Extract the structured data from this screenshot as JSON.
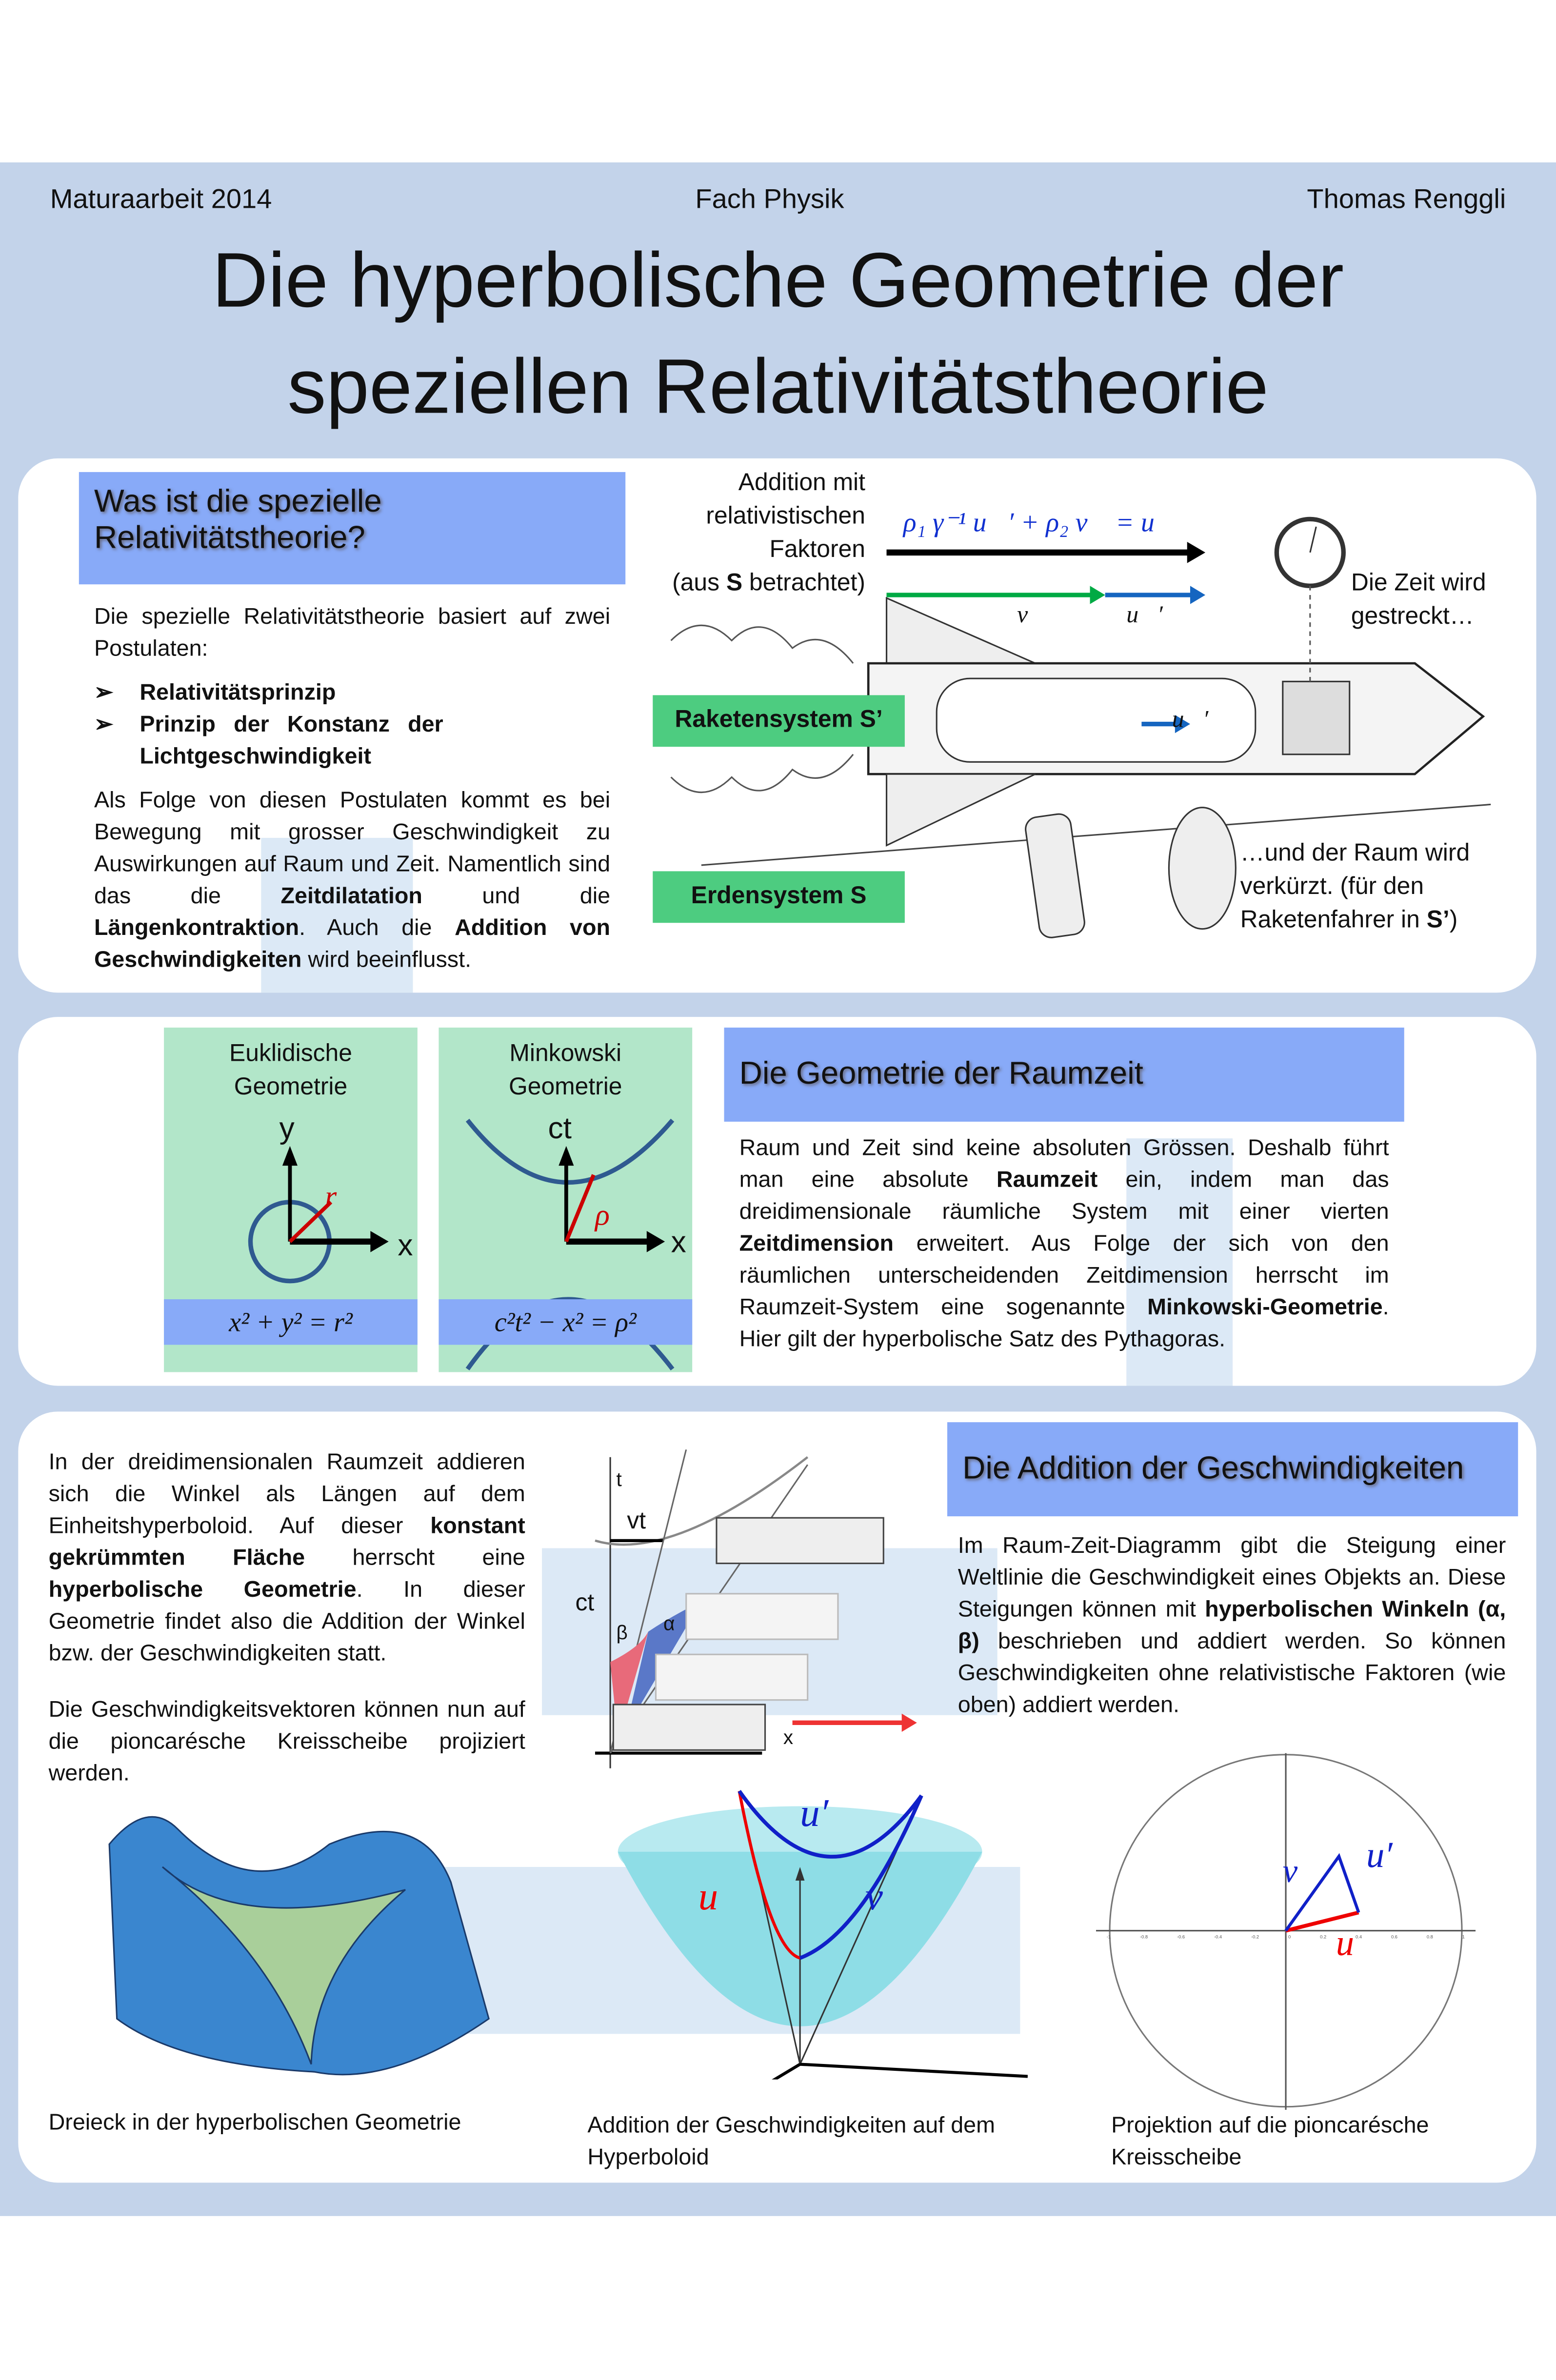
{
  "header": {
    "left": "Maturaarbeit 2014",
    "center": "Fach Physik",
    "right": "Thomas Renggli",
    "title_line1": "Die hyperbolische Geometrie der",
    "title_line2": "speziellen Relativitätstheorie"
  },
  "section1": {
    "heading_line1": "Was ist die spezielle",
    "heading_line2": "Relativitätstheorie?",
    "intro": "Die spezielle Relativitätstheorie basiert auf zwei Postulaten:",
    "postulates": [
      "Relativitätsprinzip",
      "Prinzip der Konstanz der Lichtgeschwindigkeit"
    ],
    "body": [
      {
        "t": "Als Folge von diesen Postulaten kommt es bei Bewegung mit grosser Geschwindigkeit zu Auswirkungen auf Raum und Zeit. Namentlich sind das die "
      },
      {
        "t": "Zeitdilatation",
        "b": true
      },
      {
        "t": " und die "
      },
      {
        "t": "Längenkontraktion",
        "b": true
      },
      {
        "t": ". Auch die "
      },
      {
        "t": "Addition von Geschwindigkeiten",
        "b": true
      },
      {
        "t": " wird beeinflusst."
      }
    ],
    "addition_label": [
      "Addition mit",
      "relativistischen",
      "Faktoren"
    ],
    "addition_label_suffix": {
      "pre": "(aus ",
      "bold": "S",
      "post": " betrachtet)"
    },
    "formula": "ρ₁ γ⁻¹ u⃗′ + ρ₂ v⃗ = u⃗",
    "vec_v": "v⃗",
    "vec_u_prime": "u⃗′",
    "time_label": [
      "Die Zeit wird",
      "gestreckt…"
    ],
    "space_label": [
      "…und der Raum wird",
      "verkürzt. (für den"
    ],
    "space_label_last": {
      "pre": "Raketenfahrer in ",
      "bold": "S’",
      "post": ")"
    },
    "rocket_system": "Raketensystem S’",
    "earth_system": "Erdensystem S"
  },
  "section2": {
    "euclid_title": [
      "Euklidische",
      "Geometrie"
    ],
    "minkowski_title": [
      "Minkowski",
      "Geometrie"
    ],
    "euclid_axes": {
      "y": "y",
      "x": "x",
      "r": "r"
    },
    "minkowski_axes": {
      "y": "ct",
      "x": "x",
      "r": "ρ"
    },
    "euclid_eq": "x² + y² = r²",
    "minkowski_eq": "c²t² − x² = ρ²",
    "heading": "Die Geometrie der Raumzeit",
    "body": [
      {
        "t": "Raum und Zeit sind keine absoluten Grössen. Deshalb führt man eine absolute "
      },
      {
        "t": "Raumzeit",
        "b": true
      },
      {
        "t": " ein, indem man das dreidimensionale räumliche System mit einer vierten "
      },
      {
        "t": "Zeitdimension",
        "b": true
      },
      {
        "t": " erweitert. Aus Folge der sich von den räumlichen unterscheidenden Zeitdimension herrscht im Raumzeit-System eine sogenannte "
      },
      {
        "t": "Minkowski-Geometrie",
        "b": true
      },
      {
        "t": ". Hier gilt der hyperbolische Satz des Pythagoras."
      }
    ]
  },
  "section3": {
    "body1": [
      {
        "t": "In der dreidimensionalen Raumzeit addieren sich die Winkel als Längen auf dem Einheitshyperboloid. Auf dieser "
      },
      {
        "t": "konstant gekrümmten Fläche",
        "b": true
      },
      {
        "t": " herrscht eine "
      },
      {
        "t": "hyperbolische Geometrie",
        "b": true
      },
      {
        "t": ". In dieser Geometrie findet also die Addition der Winkel bzw. der Geschwindigkeiten statt."
      }
    ],
    "body2": [
      {
        "t": "Die Geschwindigkeitsvektoren können nun auf die pioncarésche Kreisscheibe projiziert werden."
      }
    ],
    "diagram_labels": {
      "t": "t",
      "vt": "vt",
      "ct": "ct",
      "beta": "β",
      "alpha": "α",
      "x": "x"
    },
    "heading": "Die Addition der Geschwindigkeiten",
    "body3": [
      {
        "t": "Im Raum-Zeit-Diagramm gibt die Steigung einer Weltlinie die Geschwindigkeit eines Objekts an. Diese Steigungen können mit "
      },
      {
        "t": "hyperbolischen Winkeln (α, β)",
        "b": true
      },
      {
        "t": " beschrieben und addiert werden. So können Geschwindigkeiten ohne relativistische Faktoren (wie oben) addiert werden."
      }
    ],
    "hyperboloid_labels": {
      "u": "u",
      "u_prime": "u′",
      "v": "v"
    },
    "disk_ticks": [
      "-1",
      "-0.8",
      "-0.6",
      "-0.4",
      "-0.2",
      "0",
      "0.2",
      "0.4",
      "0.6",
      "0.8",
      "1"
    ],
    "caption_triangle": "Dreieck in der hyperbolischen Geometrie",
    "caption_hyperboloid": "Addition der Geschwindigkeiten auf dem Hyperboloid",
    "caption_disk": "Projektion auf die pioncarésche Kreisscheibe"
  },
  "colors": {
    "background": "#c3d3ea",
    "heading": "#88aaf8",
    "green": "#4dcc80",
    "column": "#b2e6c9",
    "red": "#d01010",
    "blue": "#1030d0"
  }
}
